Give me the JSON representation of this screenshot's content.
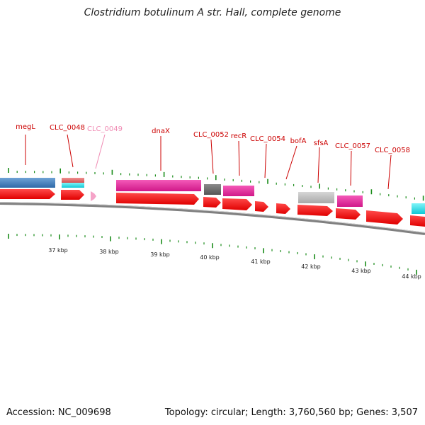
{
  "title": "Clostridium botulinum A str. Hall, complete genome",
  "accession": "Accession: NC_009698",
  "topology_info": "Topology: circular; Length: 3,760,560 bp; Genes: 3,507",
  "colors": {
    "label_red": "#cc0000",
    "label_pink": "#f08cb4",
    "cds_red": "#ff1a1a",
    "backbone": "#808080",
    "tick_green": "#1a8c1a",
    "gene_blue": "#3f7fbf",
    "gene_magenta": "#e8249c",
    "gene_gray_dark": "#666666",
    "gene_gray_light": "#bdbdbd",
    "gene_cyan": "#1ae0ea",
    "gene_salmon": "#e06060"
  },
  "kbp_ticks": [
    "37 kbp",
    "38 kbp",
    "39 kbp",
    "40 kbp",
    "41 kbp",
    "42 kbp",
    "43 kbp",
    "44 kbp"
  ],
  "gene_labels": [
    {
      "name": "megL",
      "color": "red"
    },
    {
      "name": "CLC_0048",
      "color": "red"
    },
    {
      "name": "CLC_0049",
      "color": "pink"
    },
    {
      "name": "dnaX",
      "color": "red"
    },
    {
      "name": "CLC_0052",
      "color": "red"
    },
    {
      "name": "recR",
      "color": "red"
    },
    {
      "name": "CLC_0054",
      "color": "red"
    },
    {
      "name": "bofA",
      "color": "red"
    },
    {
      "name": "sfsA",
      "color": "red"
    },
    {
      "name": "CLC_0057",
      "color": "red"
    },
    {
      "name": "CLC_0058",
      "color": "red"
    }
  ]
}
